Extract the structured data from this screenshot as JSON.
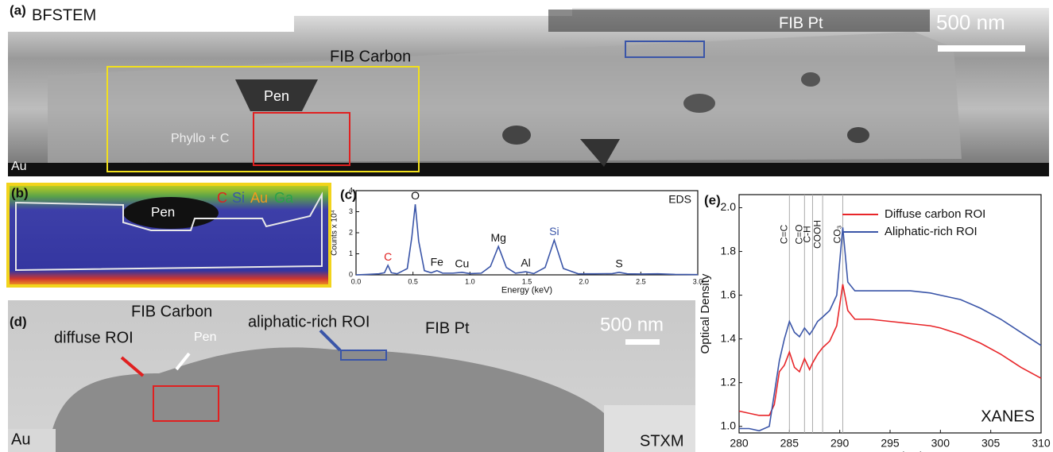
{
  "panels": {
    "a": {
      "label": "(a)",
      "texts": [
        "BFSTEM",
        "FIB Carbon",
        "FIB Pt",
        "500 nm",
        "Pen",
        "Phyllo + C",
        "Au"
      ]
    },
    "b": {
      "label": "(b)",
      "texts": [
        "Pen",
        "C",
        "Si",
        "Au",
        "Ga"
      ]
    },
    "d": {
      "label": "(d)",
      "texts": [
        "FIB Carbon",
        "diffuse ROI",
        "Pen",
        "aliphatic-rich ROI",
        "FIB Pt",
        "500 nm",
        "Au",
        "STXM"
      ]
    }
  },
  "chart_data": [
    {
      "type": "line",
      "panel_label": "(c)",
      "annotation": "EDS",
      "xlabel": "Energy (keV)",
      "ylabel": "Counts x 10⁴",
      "x": [
        0,
        0.1,
        0.2,
        0.25,
        0.28,
        0.31,
        0.36,
        0.45,
        0.49,
        0.52,
        0.55,
        0.6,
        0.66,
        0.71,
        0.76,
        0.85,
        0.93,
        1.0,
        1.1,
        1.18,
        1.25,
        1.32,
        1.4,
        1.49,
        1.56,
        1.66,
        1.74,
        1.82,
        1.95,
        2.1,
        2.25,
        2.31,
        2.38,
        2.5,
        2.65,
        2.8,
        3.0
      ],
      "series": [
        {
          "color": "#3a55a8",
          "values": [
            0,
            0.02,
            0.05,
            0.1,
            0.45,
            0.1,
            0.05,
            0.3,
            1.8,
            3.35,
            1.6,
            0.2,
            0.1,
            0.2,
            0.08,
            0.08,
            0.12,
            0.06,
            0.08,
            0.4,
            1.35,
            0.35,
            0.08,
            0.15,
            0.06,
            0.35,
            1.65,
            0.3,
            0.05,
            0.05,
            0.06,
            0.12,
            0.05,
            0.04,
            0.05,
            0.02,
            0.01
          ]
        }
      ],
      "peaks": [
        {
          "label": "C",
          "x": 0.28,
          "color": "#e02020"
        },
        {
          "label": "O",
          "x": 0.52,
          "color": "#111111"
        },
        {
          "label": "Fe",
          "x": 0.71,
          "color": "#111111"
        },
        {
          "label": "Cu",
          "x": 0.93,
          "color": "#111111"
        },
        {
          "label": "Mg",
          "x": 1.25,
          "color": "#111111"
        },
        {
          "label": "Al",
          "x": 1.49,
          "color": "#111111"
        },
        {
          "label": "Si",
          "x": 1.74,
          "color": "#3a55a8"
        },
        {
          "label": "S",
          "x": 2.31,
          "color": "#111111"
        }
      ],
      "xlim": [
        0,
        3
      ],
      "ylim": [
        0,
        4
      ],
      "xticks": [
        {
          "value": 0,
          "label": "0.0"
        },
        {
          "value": 0.5,
          "label": "0.5"
        },
        {
          "value": 1,
          "label": "1.0"
        },
        {
          "value": 1.5,
          "label": "1.5"
        },
        {
          "value": 2,
          "label": "2.0"
        },
        {
          "value": 2.5,
          "label": "2.5"
        },
        {
          "value": 3,
          "label": "3.0"
        }
      ],
      "yticks": [
        0,
        1,
        2,
        3,
        4
      ]
    },
    {
      "type": "line",
      "panel_label": "(e)",
      "annotation": "XANES",
      "xlabel": "Energy (eV)",
      "ylabel": "Optical Density",
      "x": [
        280,
        281,
        282,
        283,
        283.5,
        284,
        284.5,
        285,
        285.5,
        286,
        286.5,
        287,
        287.3,
        287.8,
        288.3,
        289,
        289.7,
        290.3,
        290.8,
        291.5,
        293,
        295,
        297,
        299,
        300,
        302,
        304,
        306,
        308,
        310
      ],
      "series": [
        {
          "name": "Diffuse carbon ROI",
          "color": "#e8262a",
          "values": [
            1.07,
            1.06,
            1.05,
            1.05,
            1.1,
            1.25,
            1.28,
            1.34,
            1.27,
            1.25,
            1.31,
            1.26,
            1.29,
            1.33,
            1.36,
            1.39,
            1.46,
            1.65,
            1.53,
            1.49,
            1.49,
            1.48,
            1.47,
            1.46,
            1.45,
            1.42,
            1.38,
            1.33,
            1.27,
            1.22
          ]
        },
        {
          "name": "Aliphatic-rich ROI",
          "color": "#3a55a8",
          "values": [
            0.99,
            0.99,
            0.98,
            1.0,
            1.15,
            1.3,
            1.4,
            1.48,
            1.43,
            1.41,
            1.45,
            1.42,
            1.44,
            1.48,
            1.5,
            1.53,
            1.6,
            1.91,
            1.66,
            1.62,
            1.62,
            1.62,
            1.62,
            1.61,
            1.6,
            1.58,
            1.54,
            1.49,
            1.43,
            1.37
          ]
        }
      ],
      "vlines": [
        {
          "value": 285,
          "label": "C=C"
        },
        {
          "value": 286.5,
          "label": "C=O"
        },
        {
          "value": 287.3,
          "label": "C-H"
        },
        {
          "value": 288.3,
          "label": "COOH"
        },
        {
          "value": 290.3,
          "label": "CO₃"
        }
      ],
      "legend": "upper right",
      "xlim": [
        280,
        310
      ],
      "ylim": [
        0.97,
        2.06
      ],
      "xticks": [
        280,
        285,
        290,
        295,
        300,
        305,
        310
      ],
      "yticks": [
        {
          "value": 1,
          "label": "1.0"
        },
        {
          "value": 1.2,
          "label": "1.2"
        },
        {
          "value": 1.4,
          "label": "1.4"
        },
        {
          "value": 1.6,
          "label": "1.6"
        },
        {
          "value": 1.8,
          "label": "1.8"
        },
        {
          "value": 2,
          "label": "2.0"
        }
      ]
    }
  ]
}
